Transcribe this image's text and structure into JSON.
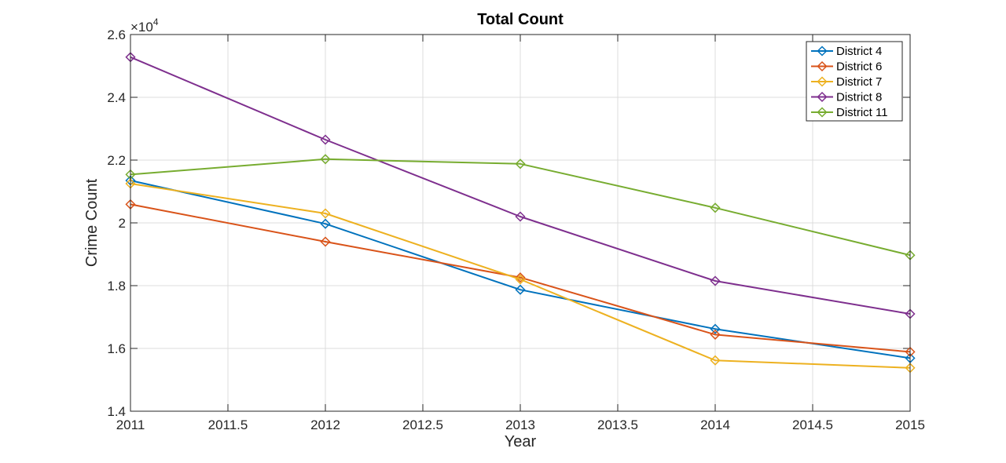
{
  "chart_data": {
    "type": "line",
    "title": "Total Count",
    "xlabel": "Year",
    "ylabel": "Crime Count",
    "y_exponent_base": "×10",
    "y_exponent": "4",
    "xlim": [
      2011,
      2015
    ],
    "ylim": [
      1.4,
      2.6
    ],
    "y_scale": 10000,
    "x_ticks": [
      2011,
      2011.5,
      2012,
      2012.5,
      2013,
      2013.5,
      2014,
      2014.5,
      2015
    ],
    "x_tick_labels": [
      "2011",
      "2011.5",
      "2012",
      "2012.5",
      "2013",
      "2013.5",
      "2014",
      "2014.5",
      "2015"
    ],
    "y_ticks": [
      1.4,
      1.6,
      1.8,
      2.0,
      2.2,
      2.4,
      2.6
    ],
    "y_tick_labels": [
      "1.4",
      "1.6",
      "1.8",
      "2",
      "2.2",
      "2.4",
      "2.6"
    ],
    "grid": true,
    "legend_position": "top-right",
    "marker": "diamond",
    "x": [
      2011,
      2012,
      2013,
      2014,
      2015
    ],
    "series": [
      {
        "name": "District 4",
        "color": "#0072BD",
        "values": [
          21350,
          19970,
          17870,
          16620,
          15690
        ]
      },
      {
        "name": "District 6",
        "color": "#D95319",
        "values": [
          20590,
          19400,
          18260,
          16440,
          15890
        ]
      },
      {
        "name": "District 7",
        "color": "#EDB120",
        "values": [
          21250,
          20300,
          18200,
          15620,
          15380
        ]
      },
      {
        "name": "District 8",
        "color": "#7E2F8E",
        "values": [
          25280,
          22650,
          20200,
          18150,
          17100
        ]
      },
      {
        "name": "District 11",
        "color": "#77AC30",
        "values": [
          21540,
          22030,
          21880,
          20480,
          18970
        ]
      }
    ]
  }
}
